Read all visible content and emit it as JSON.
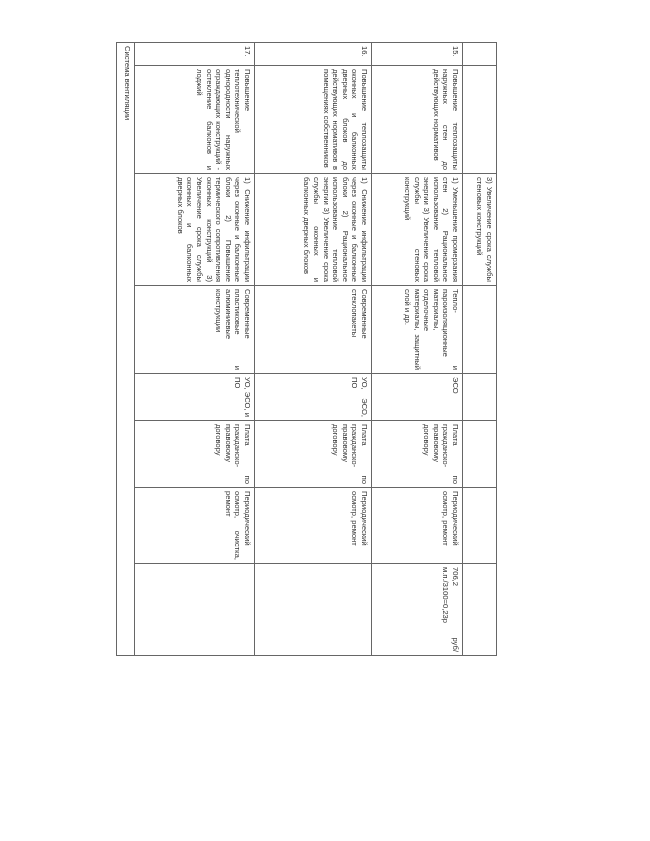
{
  "rows": [
    {
      "num": "",
      "measure": "",
      "effect": "3) Увеличение срока службы стеновых конструкций",
      "materials": "",
      "executors": "",
      "funding": "",
      "maintenance": "",
      "cost": ""
    },
    {
      "num": "15.",
      "measure": "Повышение теплозащиты наружных стен до действующих нормативов",
      "effect": "1) Уменьшение промерзания стен 2) Рациональное использование тепловой энергии 3) Увеличение срока службы стеновых конструкций",
      "materials": "Тепло- и пароизоляционные материалы, отделочные материалы, защитный слой и др.",
      "executors": "ЭСО",
      "funding": "Плата по гражданско-правовому договору",
      "maintenance": "Периодический осмотр, ремонт",
      "cost": "706,2 руб/м.п./3100=0,23р"
    },
    {
      "num": "16.",
      "measure": "Повышение теплозащиты оконных и балконных дверных блоков до действующих нормативов в помещениях собственников",
      "effect": "1) Снижение инфильтрации через оконные и балконные блоки 2) Рациональное использование тепловой энергии 3) Увеличение срока службы оконных и балконных дверных блоков",
      "materials": "Современные стеклопакеты",
      "executors": "УО, ЭСО, ПО",
      "funding": "Плата по гражданско-правовому договору",
      "maintenance": "Периодический осмотр, ремонт",
      "cost": ""
    },
    {
      "num": "17.",
      "measure": "Повышение теплотехнической однородности наружных ограждающих конструкций - остекление балконов и лоджий",
      "effect": "1) Снижение инфильтрации через оконные и балконные блоки 2) Повышение термического сопротивления оконных конструкций 3) Увеличение срока службы оконных и балконных дверных блоков",
      "materials": "Современные пластиковые и алюминиевые конструкции",
      "executors": "УО, ЭСО, и ПО",
      "funding": "Плата по гражданско-правовому договору",
      "maintenance": "Периодический осмотр, очистка, ремонт",
      "cost": ""
    }
  ],
  "section": "Система вентиляции"
}
